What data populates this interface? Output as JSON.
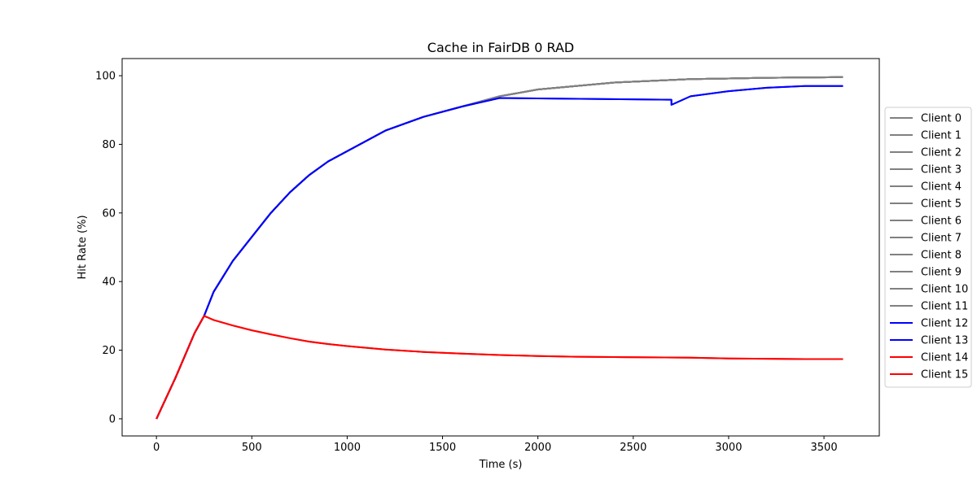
{
  "chart_data": {
    "type": "line",
    "title": "Cache in  FairDB 0 RAD",
    "xlabel": "Time (s)",
    "ylabel": "Hit Rate (%)",
    "xlim": [
      -180,
      3790
    ],
    "ylim": [
      -5,
      105
    ],
    "xticks": [
      0,
      500,
      1000,
      1500,
      2000,
      2500,
      3000,
      3500
    ],
    "yticks": [
      0,
      20,
      40,
      60,
      80,
      100
    ],
    "grid": false,
    "legend_position": "right",
    "colors": {
      "gray": "#808080",
      "blue": "#0000ff",
      "red": "#ff0000"
    },
    "series": [
      {
        "name": "Client 0",
        "color": "#808080",
        "x": [
          0,
          100,
          200,
          250,
          300,
          400,
          500,
          600,
          700,
          800,
          900,
          1000,
          1200,
          1400,
          1600,
          1800,
          2000,
          2200,
          2400,
          2600,
          2800,
          3000,
          3200,
          3400,
          3600
        ],
        "y": [
          0,
          12,
          25,
          30,
          37,
          46,
          53,
          60,
          66,
          71,
          75,
          78,
          84,
          88,
          91,
          94,
          96,
          97,
          98,
          98.5,
          99,
          99.2,
          99.4,
          99.5,
          99.6
        ]
      },
      {
        "name": "Client 1",
        "color": "#808080",
        "x": [
          0,
          100,
          200,
          250,
          300,
          400,
          500,
          600,
          700,
          800,
          900,
          1000,
          1200,
          1400,
          1600,
          1800,
          2000,
          2200,
          2400,
          2600,
          2800,
          3000,
          3200,
          3400,
          3600
        ],
        "y": [
          0,
          12,
          25,
          30,
          37,
          46,
          53,
          60,
          66,
          71,
          75,
          78,
          84,
          88,
          91,
          94,
          96,
          97,
          98,
          98.5,
          99,
          99.2,
          99.4,
          99.5,
          99.6
        ]
      },
      {
        "name": "Client 2",
        "color": "#808080",
        "x": [
          0,
          100,
          200,
          250,
          300,
          400,
          500,
          600,
          700,
          800,
          900,
          1000,
          1200,
          1400,
          1600,
          1800,
          2000,
          2200,
          2400,
          2600,
          2800,
          3000,
          3200,
          3400,
          3600
        ],
        "y": [
          0,
          12,
          25,
          30,
          37,
          46,
          53,
          60,
          66,
          71,
          75,
          78,
          84,
          88,
          91,
          94,
          96,
          97,
          98,
          98.5,
          99,
          99.2,
          99.4,
          99.5,
          99.6
        ]
      },
      {
        "name": "Client 3",
        "color": "#808080",
        "x": [
          0,
          100,
          200,
          250,
          300,
          400,
          500,
          600,
          700,
          800,
          900,
          1000,
          1200,
          1400,
          1600,
          1800,
          2000,
          2200,
          2400,
          2600,
          2800,
          3000,
          3200,
          3400,
          3600
        ],
        "y": [
          0,
          12,
          25,
          30,
          37,
          46,
          53,
          60,
          66,
          71,
          75,
          78,
          84,
          88,
          91,
          94,
          96,
          97,
          98,
          98.5,
          99,
          99.2,
          99.4,
          99.5,
          99.6
        ]
      },
      {
        "name": "Client 4",
        "color": "#808080",
        "x": [
          0,
          100,
          200,
          250,
          300,
          400,
          500,
          600,
          700,
          800,
          900,
          1000,
          1200,
          1400,
          1600,
          1800,
          2000,
          2200,
          2400,
          2600,
          2800,
          3000,
          3200,
          3400,
          3600
        ],
        "y": [
          0,
          12,
          25,
          30,
          37,
          46,
          53,
          60,
          66,
          71,
          75,
          78,
          84,
          88,
          91,
          94,
          96,
          97,
          98,
          98.5,
          99,
          99.2,
          99.4,
          99.5,
          99.6
        ]
      },
      {
        "name": "Client 5",
        "color": "#808080",
        "x": [
          0,
          100,
          200,
          250,
          300,
          400,
          500,
          600,
          700,
          800,
          900,
          1000,
          1200,
          1400,
          1600,
          1800,
          2000,
          2200,
          2400,
          2600,
          2800,
          3000,
          3200,
          3400,
          3600
        ],
        "y": [
          0,
          12,
          25,
          30,
          37,
          46,
          53,
          60,
          66,
          71,
          75,
          78,
          84,
          88,
          91,
          94,
          96,
          97,
          98,
          98.5,
          99,
          99.2,
          99.4,
          99.5,
          99.6
        ]
      },
      {
        "name": "Client 6",
        "color": "#808080",
        "x": [
          0,
          100,
          200,
          250,
          300,
          400,
          500,
          600,
          700,
          800,
          900,
          1000,
          1200,
          1400,
          1600,
          1800,
          2000,
          2200,
          2400,
          2600,
          2800,
          3000,
          3200,
          3400,
          3600
        ],
        "y": [
          0,
          12,
          25,
          30,
          37,
          46,
          53,
          60,
          66,
          71,
          75,
          78,
          84,
          88,
          91,
          94,
          96,
          97,
          98,
          98.5,
          99,
          99.2,
          99.4,
          99.5,
          99.6
        ]
      },
      {
        "name": "Client 7",
        "color": "#808080",
        "x": [
          0,
          100,
          200,
          250,
          300,
          400,
          500,
          600,
          700,
          800,
          900,
          1000,
          1200,
          1400,
          1600,
          1800,
          2000,
          2200,
          2400,
          2600,
          2800,
          3000,
          3200,
          3400,
          3600
        ],
        "y": [
          0,
          12,
          25,
          30,
          37,
          46,
          53,
          60,
          66,
          71,
          75,
          78,
          84,
          88,
          91,
          94,
          96,
          97,
          98,
          98.5,
          99,
          99.2,
          99.4,
          99.5,
          99.6
        ]
      },
      {
        "name": "Client 8",
        "color": "#808080",
        "x": [
          0,
          100,
          200,
          250,
          300,
          400,
          500,
          600,
          700,
          800,
          900,
          1000,
          1200,
          1400,
          1600,
          1800,
          2000,
          2200,
          2400,
          2600,
          2800,
          3000,
          3200,
          3400,
          3600
        ],
        "y": [
          0,
          12,
          25,
          30,
          37,
          46,
          53,
          60,
          66,
          71,
          75,
          78,
          84,
          88,
          91,
          94,
          96,
          97,
          98,
          98.5,
          99,
          99.2,
          99.4,
          99.5,
          99.6
        ]
      },
      {
        "name": "Client 9",
        "color": "#808080",
        "x": [
          0,
          100,
          200,
          250,
          300,
          400,
          500,
          600,
          700,
          800,
          900,
          1000,
          1200,
          1400,
          1600,
          1800,
          2000,
          2200,
          2400,
          2600,
          2800,
          3000,
          3200,
          3400,
          3600
        ],
        "y": [
          0,
          12,
          25,
          30,
          37,
          46,
          53,
          60,
          66,
          71,
          75,
          78,
          84,
          88,
          91,
          94,
          96,
          97,
          98,
          98.5,
          99,
          99.2,
          99.4,
          99.5,
          99.6
        ]
      },
      {
        "name": "Client 10",
        "color": "#808080",
        "x": [
          0,
          100,
          200,
          250,
          300,
          400,
          500,
          600,
          700,
          800,
          900,
          1000,
          1200,
          1400,
          1600,
          1800,
          2000,
          2200,
          2400,
          2600,
          2800,
          3000,
          3200,
          3400,
          3600
        ],
        "y": [
          0,
          12,
          25,
          30,
          37,
          46,
          53,
          60,
          66,
          71,
          75,
          78,
          84,
          88,
          91,
          94,
          96,
          97,
          98,
          98.5,
          99,
          99.2,
          99.4,
          99.5,
          99.6
        ]
      },
      {
        "name": "Client 11",
        "color": "#808080",
        "x": [
          0,
          100,
          200,
          250,
          300,
          400,
          500,
          600,
          700,
          800,
          900,
          1000,
          1200,
          1400,
          1600,
          1800,
          2000,
          2200,
          2400,
          2600,
          2800,
          3000,
          3200,
          3400,
          3600
        ],
        "y": [
          0,
          12,
          25,
          30,
          37,
          46,
          53,
          60,
          66,
          71,
          75,
          78,
          84,
          88,
          91,
          94,
          96,
          97,
          98,
          98.5,
          99,
          99.2,
          99.4,
          99.5,
          99.6
        ]
      },
      {
        "name": "Client 12",
        "color": "#0000ff",
        "x": [
          0,
          100,
          200,
          250,
          300,
          400,
          500,
          600,
          700,
          800,
          900,
          1000,
          1200,
          1400,
          1600,
          1800,
          2700,
          2700,
          2800,
          3000,
          3200,
          3400,
          3600
        ],
        "y": [
          0,
          12,
          25,
          30,
          37,
          46,
          53,
          60,
          66,
          71,
          75,
          78,
          84,
          88,
          91,
          93.5,
          93,
          91.5,
          94,
          95.5,
          96.5,
          97,
          97
        ]
      },
      {
        "name": "Client 13",
        "color": "#0000ff",
        "x": [
          0,
          100,
          200,
          250,
          300,
          400,
          500,
          600,
          700,
          800,
          900,
          1000,
          1200,
          1400,
          1600,
          1800,
          2700,
          2700,
          2800,
          3000,
          3200,
          3400,
          3600
        ],
        "y": [
          0,
          12,
          25,
          30,
          37,
          46,
          53,
          60,
          66,
          71,
          75,
          78,
          84,
          88,
          91,
          93.5,
          93,
          91.5,
          94,
          95.5,
          96.5,
          97,
          97
        ]
      },
      {
        "name": "Client 14",
        "color": "#ff0000",
        "x": [
          0,
          100,
          200,
          250,
          300,
          400,
          500,
          600,
          700,
          800,
          900,
          1000,
          1200,
          1400,
          1600,
          1800,
          2000,
          2200,
          2400,
          2600,
          2800,
          3000,
          3200,
          3400,
          3600
        ],
        "y": [
          0,
          12,
          25,
          30,
          28.8,
          27.2,
          25.8,
          24.6,
          23.5,
          22.5,
          21.8,
          21.2,
          20.2,
          19.5,
          19,
          18.6,
          18.3,
          18.1,
          18,
          17.9,
          17.8,
          17.6,
          17.5,
          17.4,
          17.4
        ]
      },
      {
        "name": "Client 15",
        "color": "#ff0000",
        "x": [
          0,
          100,
          200,
          250,
          300,
          400,
          500,
          600,
          700,
          800,
          900,
          1000,
          1200,
          1400,
          1600,
          1800,
          2000,
          2200,
          2400,
          2600,
          2800,
          3000,
          3200,
          3400,
          3600
        ],
        "y": [
          0,
          12,
          25,
          30,
          28.8,
          27.2,
          25.8,
          24.6,
          23.5,
          22.5,
          21.8,
          21.2,
          20.2,
          19.5,
          19,
          18.6,
          18.3,
          18.1,
          18,
          17.9,
          17.8,
          17.6,
          17.5,
          17.4,
          17.4
        ]
      }
    ]
  }
}
